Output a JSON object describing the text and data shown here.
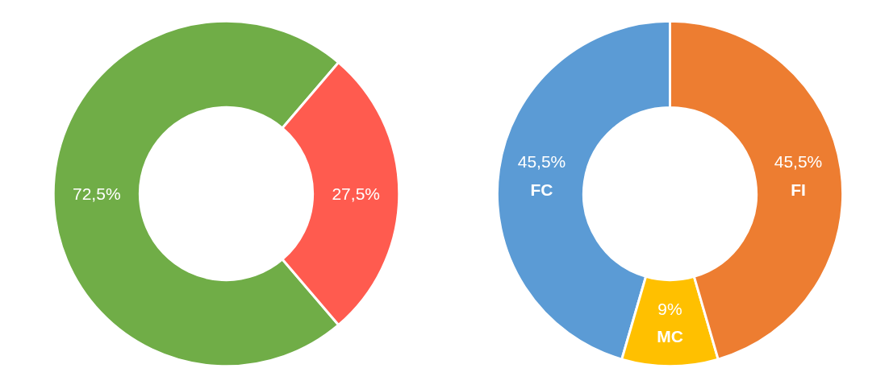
{
  "chart_data": [
    {
      "type": "donut",
      "categories": [
        null,
        null
      ],
      "values": [
        72.5,
        27.5
      ],
      "colors": [
        "#70ad47",
        "#ff5b4f"
      ],
      "value_labels": [
        "72,5%",
        "27,5%"
      ]
    },
    {
      "type": "donut",
      "categories": [
        "FC",
        "MC",
        "FI"
      ],
      "values": [
        45.5,
        9,
        45.5
      ],
      "colors": [
        "#5b9bd5",
        "#ffc000",
        "#ed7d31"
      ],
      "value_labels": [
        "45,5%",
        "9%",
        "45,5%"
      ]
    }
  ]
}
